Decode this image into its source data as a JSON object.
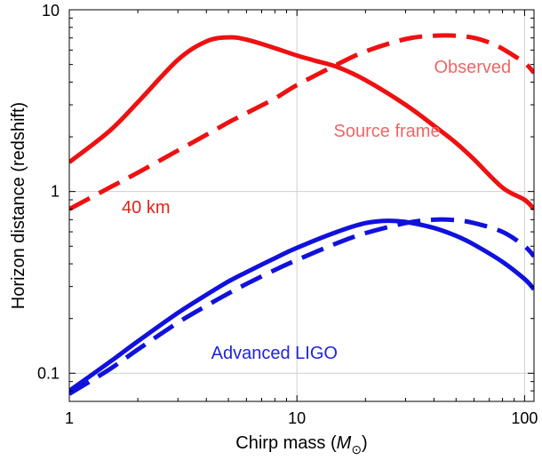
{
  "chart_data": {
    "type": "line",
    "title": "",
    "xlabel": {
      "text": "Chirp mass (",
      "symbol": "M",
      "subscript": "⊙",
      "close": ")"
    },
    "ylabel": "Horizon distance (redshift)",
    "xscale": "log",
    "yscale": "log",
    "xlim": [
      1,
      110
    ],
    "ylim": [
      0.07,
      10
    ],
    "grid": true,
    "x_ticks": [
      {
        "value": 1,
        "label": "1"
      },
      {
        "value": 10,
        "label": "10"
      },
      {
        "value": 100,
        "label": "100"
      }
    ],
    "y_ticks": [
      {
        "value": 0.1,
        "label": "0.1"
      },
      {
        "value": 1,
        "label": "1"
      },
      {
        "value": 10,
        "label": "10"
      }
    ],
    "annotations": [
      {
        "text": "Observed",
        "x": 40,
        "y": 4.5,
        "color": "#ee6666"
      },
      {
        "text": "Source frame",
        "x": 14.5,
        "y": 2.0,
        "color": "#ee6666"
      },
      {
        "text": "40 km",
        "x": 1.7,
        "y": 0.76,
        "color": "#e0231b"
      },
      {
        "text": "Advanced LIGO",
        "x": 4.2,
        "y": 0.12,
        "color": "#1f23dd"
      }
    ],
    "series": [
      {
        "detector": "40 km",
        "frame": "source",
        "style": "solid",
        "color": "#ee1111",
        "x": [
          1,
          1.5,
          2,
          3,
          4,
          5,
          6,
          8,
          10,
          12,
          15,
          20,
          30,
          40,
          50,
          60,
          80,
          100,
          110
        ],
        "y": [
          1.45,
          2.15,
          3.1,
          5.3,
          6.7,
          7.05,
          6.85,
          6.15,
          5.6,
          5.25,
          4.85,
          4.1,
          3.0,
          2.3,
          1.85,
          1.5,
          1.05,
          0.9,
          0.8
        ]
      },
      {
        "detector": "40 km",
        "frame": "observed",
        "style": "dashed",
        "color": "#ee1111",
        "x": [
          1,
          1.5,
          2,
          3,
          4,
          5,
          6,
          8,
          10,
          15,
          20,
          30,
          40,
          50,
          60,
          70,
          80,
          100,
          110
        ],
        "y": [
          0.8,
          1.05,
          1.27,
          1.68,
          2.05,
          2.4,
          2.7,
          3.25,
          3.85,
          5.0,
          5.9,
          6.9,
          7.2,
          7.2,
          7.0,
          6.6,
          6.1,
          5.1,
          4.5
        ]
      },
      {
        "detector": "Advanced LIGO",
        "frame": "source",
        "style": "solid",
        "color": "#1111dd",
        "x": [
          1,
          1.5,
          2,
          3,
          4,
          5,
          6,
          8,
          10,
          15,
          20,
          25,
          30,
          40,
          50,
          60,
          80,
          100,
          110
        ],
        "y": [
          0.08,
          0.115,
          0.15,
          0.215,
          0.27,
          0.32,
          0.36,
          0.43,
          0.49,
          0.6,
          0.67,
          0.69,
          0.68,
          0.63,
          0.57,
          0.51,
          0.41,
          0.33,
          0.29
        ]
      },
      {
        "detector": "Advanced LIGO",
        "frame": "observed",
        "style": "dashed",
        "color": "#1111dd",
        "x": [
          1,
          1.5,
          2,
          3,
          4,
          5,
          6,
          8,
          10,
          15,
          20,
          30,
          40,
          50,
          60,
          80,
          100,
          110
        ],
        "y": [
          0.077,
          0.105,
          0.135,
          0.19,
          0.235,
          0.275,
          0.31,
          0.37,
          0.42,
          0.52,
          0.59,
          0.67,
          0.7,
          0.695,
          0.67,
          0.6,
          0.5,
          0.44
        ]
      }
    ]
  }
}
